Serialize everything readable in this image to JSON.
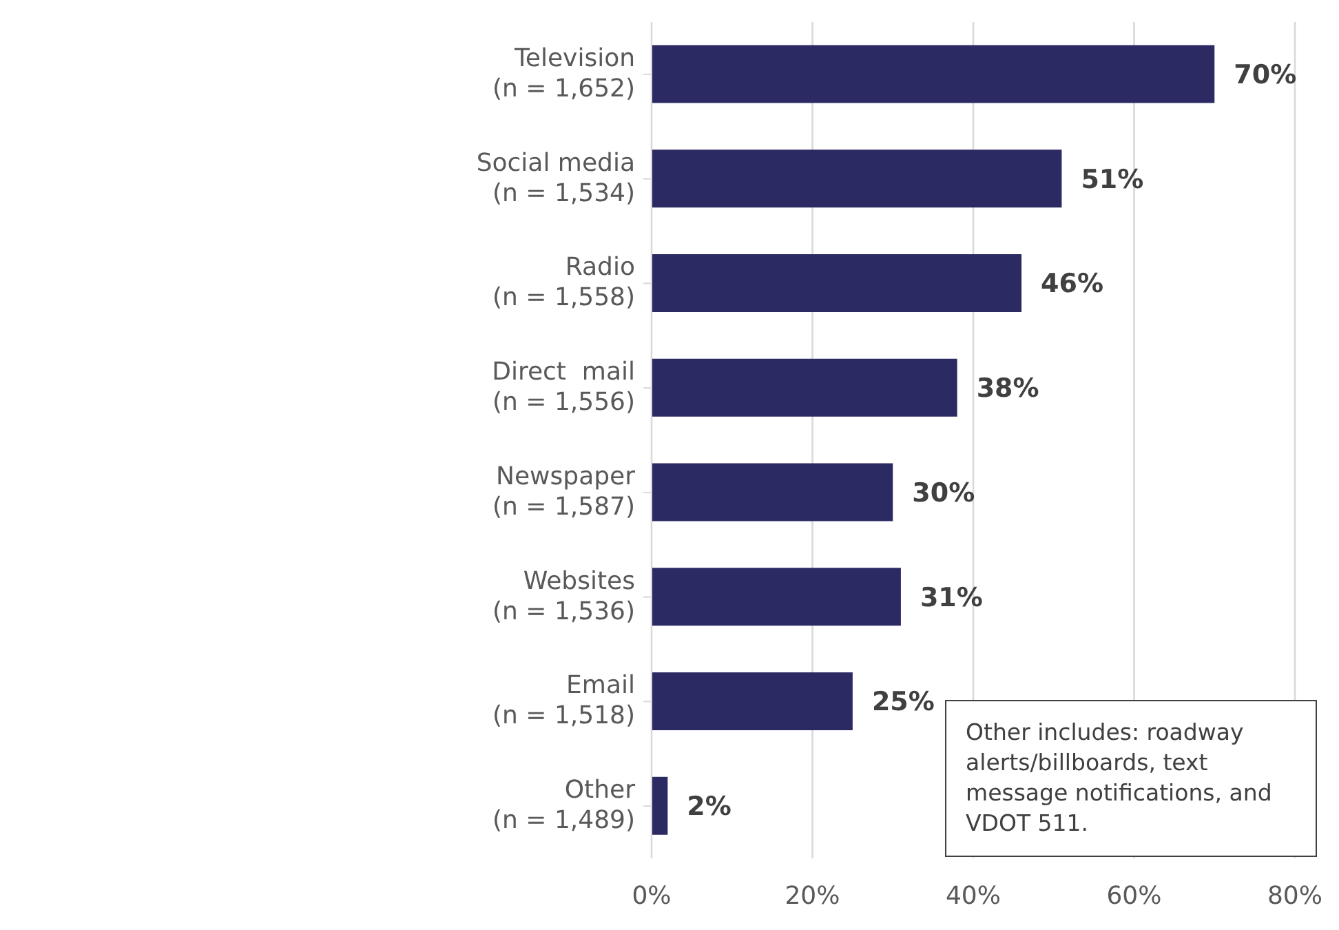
{
  "chart_data": {
    "type": "bar",
    "orientation": "horizontal",
    "categories": [
      "Television\n(n = 1,652)",
      "Social media\n(n = 1,534)",
      "Radio\n(n = 1,558)",
      "Direct  mail\n(n = 1,556)",
      "Newspaper\n(n = 1,587)",
      "Websites\n(n = 1,536)",
      "Email\n(n = 1,518)",
      "Other\n(n = 1,489)"
    ],
    "values": [
      70,
      51,
      46,
      38,
      30,
      31,
      25,
      2
    ],
    "value_labels": [
      "70%",
      "51%",
      "46%",
      "38%",
      "30%",
      "31%",
      "25%",
      "2%"
    ],
    "color": "#2b2a63",
    "xlim": [
      0,
      80
    ],
    "xticks": [
      {
        "value": 0,
        "label": "0%"
      },
      {
        "value": 20,
        "label": "20%"
      },
      {
        "value": 40,
        "label": "40%"
      },
      {
        "value": 60,
        "label": "60%"
      },
      {
        "value": 80,
        "label": "80%"
      }
    ],
    "grid": "x",
    "annotations": [
      "Other includes: roadway alerts/billboards, text message notifications, and VDOT 511."
    ]
  }
}
